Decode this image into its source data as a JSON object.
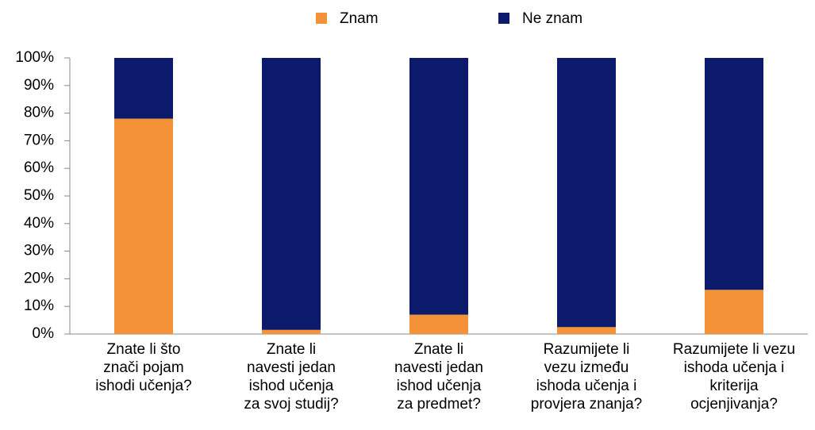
{
  "chart_data": {
    "type": "stacked_bar",
    "categories": [
      "Znate li što\nznači pojam\nishodi učenja?",
      "Znate li\nnavesti jedan\nishod učenja\nza svoj studij?",
      "Znate li\nnavesti jedan\nishod učenja\nza predmet?",
      "Razumijete li\nvezu između\nishoda učenja i\nprovjera znanja?",
      "Razumijete li vezu\nishoda učenja i\nkriterija\nocjenjivanja?"
    ],
    "series": [
      {
        "name": "Znam",
        "color": "#f39237",
        "values": [
          78,
          1.5,
          7,
          2.5,
          16
        ]
      },
      {
        "name": "Ne znam",
        "color": "#0c1a6c",
        "values": [
          22,
          98.5,
          93,
          97.5,
          84
        ]
      }
    ],
    "ylim": [
      0,
      100
    ],
    "yticks": [
      {
        "value": 0,
        "label": "0%"
      },
      {
        "value": 10,
        "label": "10%"
      },
      {
        "value": 20,
        "label": "20%"
      },
      {
        "value": 30,
        "label": "30%"
      },
      {
        "value": 40,
        "label": "40%"
      },
      {
        "value": 50,
        "label": "50%"
      },
      {
        "value": 60,
        "label": "60%"
      },
      {
        "value": 70,
        "label": "70%"
      },
      {
        "value": 80,
        "label": "80%"
      },
      {
        "value": 90,
        "label": "90%"
      },
      {
        "value": 100,
        "label": "100%"
      }
    ],
    "legend": "top"
  }
}
